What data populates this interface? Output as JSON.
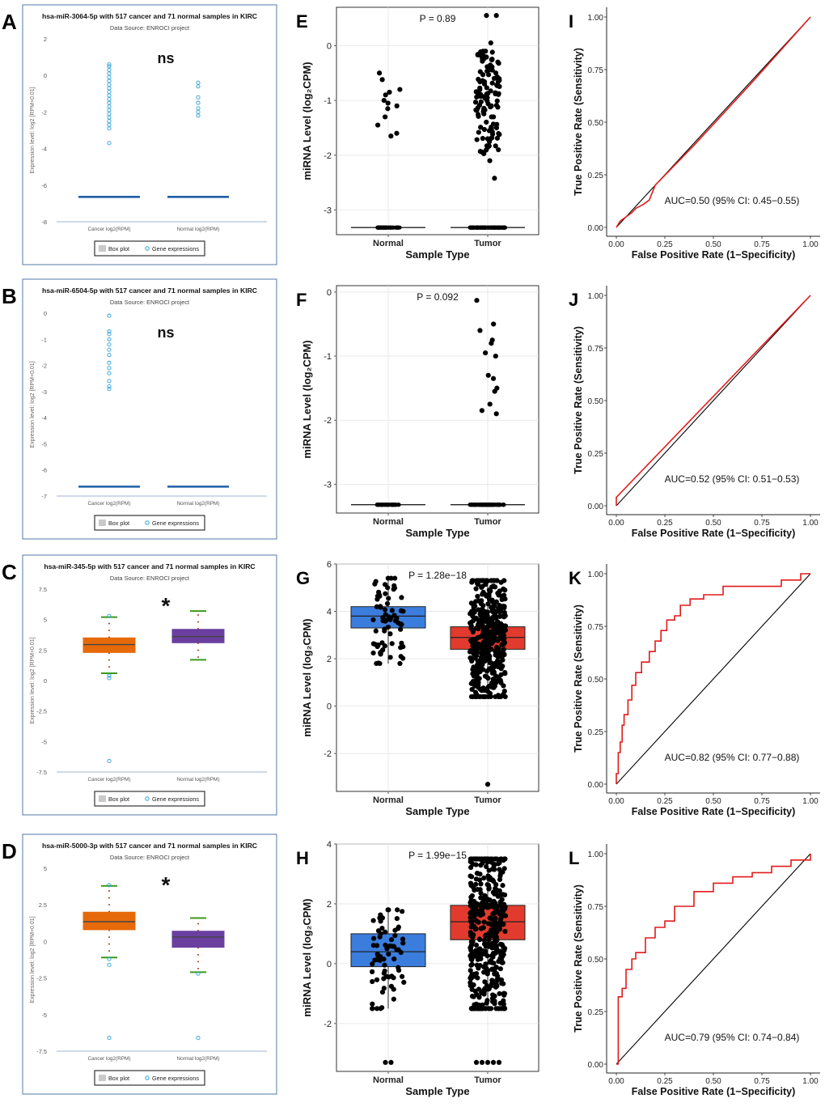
{
  "figure": {
    "left_panels": [
      {
        "letter": "A",
        "title": "hsa-miR-3064-5p with 517 cancer and 71 normal samples in KIRC",
        "subtitle": "Data Source: ENROCI project",
        "sig": "ns",
        "yticks": [
          "2",
          "0",
          "-2",
          "-4",
          "-6",
          "-8"
        ],
        "ylabel": "Expression level: log2 [RPM+0.01]",
        "xcats": [
          "Cancer log2(RPM)",
          "Normal log2(RPM)"
        ],
        "legend": [
          "Box plot",
          "Gene expressions"
        ]
      },
      {
        "letter": "B",
        "title": "hsa-miR-6504-5p with 517 cancer and 71 normal samples in KIRC",
        "subtitle": "Data Source: ENROCI project",
        "sig": "ns",
        "yticks": [
          "0",
          "-1",
          "-2",
          "-3",
          "-4",
          "-5",
          "-6",
          "-7"
        ],
        "ylabel": "Expression level: log2 [RPM+0.01]",
        "xcats": [
          "Cancer log2(RPM)",
          "Normal log2(RPM)"
        ],
        "legend": [
          "Box plot",
          "Gene expressions"
        ]
      },
      {
        "letter": "C",
        "title": "hsa-miR-345-5p with 517 cancer and 71 normal samples in KIRC",
        "subtitle": "Data Source: ENROCI project",
        "sig": "*",
        "yticks": [
          "7.5",
          "5",
          "2.5",
          "0",
          "-2.5",
          "-5",
          "-7.5"
        ],
        "ylabel": "Expression level: log2 [RPM+0.01]",
        "xcats": [
          "Cancer log2(RPM)",
          "Normal log2(RPM)"
        ],
        "legend": [
          "Box plot",
          "Gene expressions"
        ]
      },
      {
        "letter": "D",
        "title": "hsa-miR-5000-3p with 517 cancer and 71 normal samples in KIRC",
        "subtitle": "Data Source: ENROCI project",
        "sig": "*",
        "yticks": [
          "5",
          "2.5",
          "0",
          "-2.5",
          "-5",
          "-7.5"
        ],
        "ylabel": "Expression level: log2 [RPM+0.01]",
        "xcats": [
          "Cancer log2(RPM)",
          "Normal log2(RPM)"
        ],
        "legend": [
          "Box plot",
          "Gene expressions"
        ]
      }
    ],
    "mid_panels": [
      {
        "letter": "E",
        "pvalue": "P = 0.89",
        "yticks": [
          "0",
          "-1",
          "-2",
          "-3"
        ],
        "ylabel": "miRNA Level (log₂CPM)",
        "xlabel": "Sample Type",
        "xcats": [
          "Normal",
          "Tumor"
        ]
      },
      {
        "letter": "F",
        "pvalue": "P = 0.092",
        "yticks": [
          "0",
          "-1",
          "-2",
          "-3"
        ],
        "ylabel": "miRNA Level (log₂CPM)",
        "xlabel": "Sample Type",
        "xcats": [
          "Normal",
          "Tumor"
        ]
      },
      {
        "letter": "G",
        "pvalue": "P = 1.28e−18",
        "yticks": [
          "6",
          "4",
          "2",
          "0",
          "-2"
        ],
        "ylabel": "miRNA Level (log₂CPM)",
        "xlabel": "Sample Type",
        "xcats": [
          "Normal",
          "Tumor"
        ]
      },
      {
        "letter": "H",
        "pvalue": "P = 1.99e−15",
        "yticks": [
          "4",
          "2",
          "0",
          "-2"
        ],
        "ylabel": "miRNA Level (log₂CPM)",
        "xlabel": "Sample Type",
        "xcats": [
          "Normal",
          "Tumor"
        ]
      }
    ],
    "roc_panels": [
      {
        "letter": "I",
        "auc": "AUC=0.50 (95% CI: 0.45−0.55)"
      },
      {
        "letter": "J",
        "auc": "AUC=0.52 (95% CI: 0.51−0.53)"
      },
      {
        "letter": "K",
        "auc": "AUC=0.82 (95% CI: 0.77−0.88)"
      },
      {
        "letter": "L",
        "auc": "AUC=0.79 (95% CI: 0.74−0.84)"
      }
    ],
    "roc_axes": {
      "xlabel": "False Positive Rate (1−Specificity)",
      "ylabel": "True Positive Rate (Sensitivity)",
      "ticks": [
        "0.00",
        "0.25",
        "0.50",
        "0.75",
        "1.00"
      ]
    }
  },
  "chart_data": [
    {
      "panel": "A",
      "type": "box",
      "categories": [
        "Cancer log2(RPM)",
        "Normal log2(RPM)"
      ],
      "ylim": [
        -8,
        2
      ],
      "box": [
        {
          "median": -6.64
        },
        {
          "median": -6.64
        }
      ],
      "outliers": [
        [
          0.6,
          0.5,
          0.3,
          0.1,
          -0.1,
          -0.3,
          -0.5,
          -0.7,
          -0.9,
          -1.1,
          -1.3,
          -1.5,
          -1.7,
          -1.9,
          -2.1,
          -2.3,
          -2.5,
          -2.7,
          -2.9,
          -3.7
        ],
        [
          -0.4,
          -0.6,
          -1.2,
          -1.5,
          -1.8,
          -2.0,
          -2.2
        ]
      ],
      "colors": {
        "box": "#1f5fa8",
        "points": "#2a9fd6"
      }
    },
    {
      "panel": "B",
      "type": "box",
      "categories": [
        "Cancer log2(RPM)",
        "Normal log2(RPM)"
      ],
      "ylim": [
        -7,
        0
      ],
      "box": [
        {
          "median": -6.64
        },
        {
          "median": -6.64
        }
      ],
      "outliers": [
        [
          -0.1,
          -0.7,
          -0.8,
          -1.0,
          -1.2,
          -1.4,
          -1.6,
          -1.9,
          -2.1,
          -2.3,
          -2.6,
          -2.8,
          -2.9
        ],
        []
      ],
      "colors": {
        "box": "#1f5fa8",
        "points": "#2a9fd6"
      }
    },
    {
      "panel": "C",
      "type": "box",
      "categories": [
        "Cancer log2(RPM)",
        "Normal log2(RPM)"
      ],
      "ylim": [
        -7.5,
        7.5
      ],
      "box": [
        {
          "q1": 2.3,
          "median": 2.95,
          "q3": 3.5,
          "low": 0.6,
          "high": 5.2,
          "color": "#e66a0a"
        },
        {
          "q1": 3.1,
          "median": 3.6,
          "q3": 4.2,
          "low": 1.7,
          "high": 5.7,
          "color": "#6a3fa0"
        }
      ],
      "outliers": [
        [
          5.3,
          0.4,
          0.2,
          -6.6
        ],
        []
      ],
      "colors": {
        "whisker": "#3a9a1a",
        "points": "#2a9fd6"
      }
    },
    {
      "panel": "D",
      "type": "box",
      "categories": [
        "Cancer log2(RPM)",
        "Normal log2(RPM)"
      ],
      "ylim": [
        -7.5,
        5
      ],
      "box": [
        {
          "q1": 0.8,
          "median": 1.35,
          "q3": 2.0,
          "low": -1.1,
          "high": 3.8,
          "color": "#e66a0a"
        },
        {
          "q1": -0.4,
          "median": 0.3,
          "q3": 0.7,
          "low": -2.1,
          "high": 1.6,
          "color": "#6a3fa0"
        }
      ],
      "outliers": [
        [
          3.85,
          -1.2,
          -1.6,
          -6.6
        ],
        [
          -2.2,
          -6.6
        ]
      ],
      "colors": {
        "whisker": "#3a9a1a",
        "points": "#2a9fd6"
      }
    },
    {
      "panel": "E",
      "type": "box+jitter",
      "categories": [
        "Normal",
        "Tumor"
      ],
      "ylim": [
        -3.45,
        0.7
      ],
      "median": [
        -3.32,
        -3.32
      ],
      "outliers": [
        [
          -0.5,
          -0.62,
          -0.8,
          -0.85,
          -0.9,
          -1.0,
          -1.05,
          -1.1,
          -1.15,
          -1.3,
          -1.45,
          -1.6,
          -1.65
        ],
        [
          0.55,
          0.55,
          0.05,
          -0.1,
          -0.3,
          -0.5,
          -0.7,
          -0.9,
          -1.1,
          -1.3,
          -1.5,
          -1.7,
          -1.9,
          -2.1,
          -2.42
        ]
      ]
    },
    {
      "panel": "F",
      "type": "box+jitter",
      "categories": [
        "Normal",
        "Tumor"
      ],
      "ylim": [
        -3.45,
        0.1
      ],
      "median": [
        -3.32,
        -3.32
      ],
      "outliers": [
        [],
        [
          -0.13,
          -0.5,
          -0.6,
          -0.75,
          -0.8,
          -0.95,
          -1.0,
          -1.3,
          -1.35,
          -1.5,
          -1.55,
          -1.75,
          -1.85,
          -1.9
        ]
      ]
    },
    {
      "panel": "G",
      "type": "box+jitter",
      "categories": [
        "Normal",
        "Tumor"
      ],
      "ylim": [
        -3.6,
        6
      ],
      "box": [
        {
          "q1": 3.3,
          "median": 3.8,
          "q3": 4.2,
          "low": 1.8,
          "high": 5.4,
          "color": "#3b7ddd"
        },
        {
          "q1": 2.4,
          "median": 2.9,
          "q3": 3.35,
          "low": 0.4,
          "high": 5.3,
          "color": "#e23b2e"
        }
      ],
      "extreme": [
        [],
        [
          -3.3
        ]
      ]
    },
    {
      "panel": "H",
      "type": "box+jitter",
      "categories": [
        "Normal",
        "Tumor"
      ],
      "ylim": [
        -3.6,
        4
      ],
      "box": [
        {
          "q1": -0.1,
          "median": 0.4,
          "q3": 1.0,
          "low": -1.5,
          "high": 1.8,
          "color": "#3b7ddd"
        },
        {
          "q1": 0.8,
          "median": 1.4,
          "q3": 1.95,
          "low": -1.5,
          "high": 3.5,
          "color": "#e23b2e"
        }
      ],
      "extreme": [
        [
          -3.3,
          -3.3
        ],
        [
          -3.3,
          -3.3,
          -3.3,
          -3.3,
          -3.3
        ]
      ]
    },
    {
      "panel": "I",
      "type": "line",
      "series": [
        {
          "name": "ROC",
          "points": [
            [
              0,
              0
            ],
            [
              0.02,
              0.03
            ],
            [
              0.05,
              0.05
            ],
            [
              0.08,
              0.07
            ],
            [
              0.1,
              0.09
            ],
            [
              0.14,
              0.11
            ],
            [
              0.17,
              0.13
            ],
            [
              0.2,
              0.2
            ],
            [
              0.4,
              0.39
            ],
            [
              0.7,
              0.69
            ],
            [
              1,
              1
            ]
          ]
        },
        {
          "name": "diagonal",
          "points": [
            [
              0,
              0
            ],
            [
              1,
              1
            ]
          ]
        }
      ],
      "auc": 0.5
    },
    {
      "panel": "J",
      "type": "line",
      "series": [
        {
          "name": "ROC",
          "points": [
            [
              0,
              0
            ],
            [
              0,
              0.04
            ],
            [
              1,
              1
            ]
          ]
        },
        {
          "name": "diagonal",
          "points": [
            [
              0,
              0
            ],
            [
              1,
              1
            ]
          ]
        }
      ],
      "auc": 0.52
    },
    {
      "panel": "K",
      "type": "line",
      "series": [
        {
          "name": "ROC",
          "points": [
            [
              0,
              0
            ],
            [
              0,
              0.05
            ],
            [
              0.01,
              0.15
            ],
            [
              0.02,
              0.2
            ],
            [
              0.03,
              0.28
            ],
            [
              0.04,
              0.33
            ],
            [
              0.06,
              0.4
            ],
            [
              0.08,
              0.47
            ],
            [
              0.1,
              0.53
            ],
            [
              0.13,
              0.58
            ],
            [
              0.17,
              0.63
            ],
            [
              0.2,
              0.68
            ],
            [
              0.23,
              0.73
            ],
            [
              0.26,
              0.78
            ],
            [
              0.3,
              0.8
            ],
            [
              0.33,
              0.85
            ],
            [
              0.38,
              0.88
            ],
            [
              0.45,
              0.9
            ],
            [
              0.55,
              0.94
            ],
            [
              0.7,
              0.94
            ],
            [
              0.85,
              0.97
            ],
            [
              0.95,
              1.0
            ],
            [
              1,
              1
            ]
          ]
        },
        {
          "name": "diagonal",
          "points": [
            [
              0,
              0
            ],
            [
              1,
              1
            ]
          ]
        }
      ],
      "auc": 0.82
    },
    {
      "panel": "L",
      "type": "line",
      "series": [
        {
          "name": "ROC",
          "points": [
            [
              0,
              0
            ],
            [
              0.01,
              0.15
            ],
            [
              0.01,
              0.32
            ],
            [
              0.03,
              0.36
            ],
            [
              0.05,
              0.45
            ],
            [
              0.08,
              0.5
            ],
            [
              0.1,
              0.53
            ],
            [
              0.15,
              0.6
            ],
            [
              0.2,
              0.65
            ],
            [
              0.25,
              0.68
            ],
            [
              0.3,
              0.75
            ],
            [
              0.4,
              0.82
            ],
            [
              0.5,
              0.86
            ],
            [
              0.6,
              0.89
            ],
            [
              0.7,
              0.91
            ],
            [
              0.8,
              0.94
            ],
            [
              0.9,
              0.97
            ],
            [
              1,
              1
            ]
          ]
        },
        {
          "name": "diagonal",
          "points": [
            [
              0,
              0
            ],
            [
              1,
              1
            ]
          ]
        }
      ],
      "auc": 0.79
    }
  ]
}
